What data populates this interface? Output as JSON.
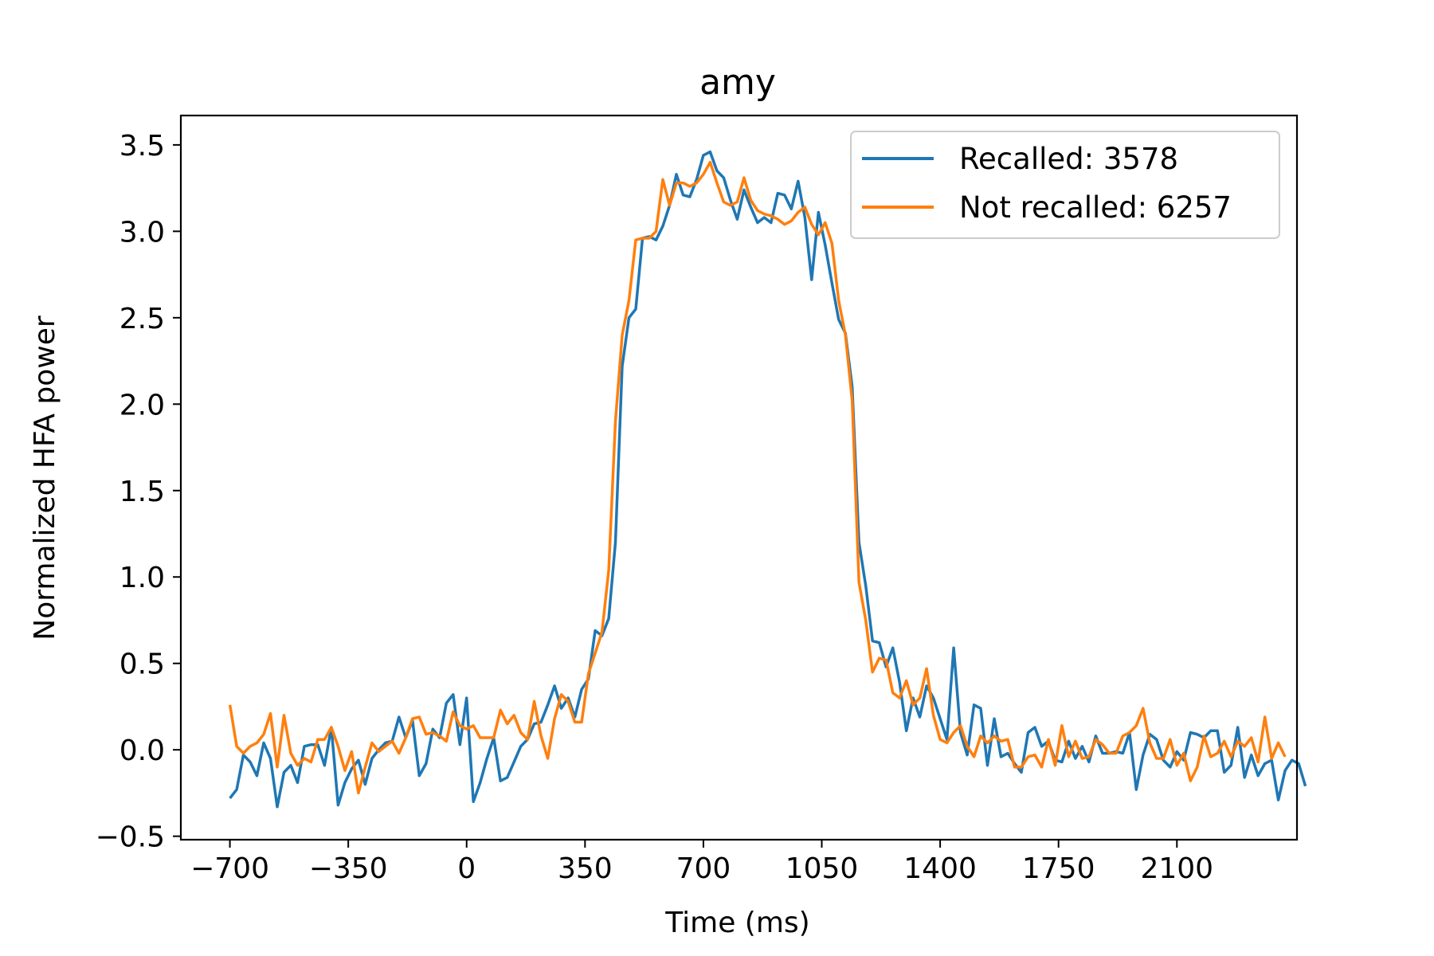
{
  "chart_data": {
    "type": "line",
    "title": "amy",
    "xlabel": "Time (ms)",
    "ylabel": "Normalized HFA power",
    "xlim": [
      -845,
      2455
    ],
    "ylim": [
      -0.52,
      3.67
    ],
    "xticks": [
      -700,
      -350,
      0,
      350,
      700,
      1050,
      1400,
      1750,
      2100
    ],
    "xtick_labels": [
      "−700",
      "−350",
      "0",
      "350",
      "700",
      "1050",
      "1400",
      "1750",
      "2100"
    ],
    "yticks": [
      -0.5,
      0.0,
      0.5,
      1.0,
      1.5,
      2.0,
      2.5,
      3.0,
      3.5
    ],
    "ytick_labels": [
      "−0.5",
      "0.0",
      "0.5",
      "1.0",
      "1.5",
      "2.0",
      "2.5",
      "3.0",
      "3.5"
    ],
    "grid": false,
    "legend_position": "top-right",
    "x_start": -700,
    "x_step": 20,
    "series": [
      {
        "name": "Recalled: 3578",
        "color": "#1f77b4",
        "values": [
          -0.28,
          -0.23,
          -0.03,
          -0.07,
          -0.15,
          0.04,
          -0.05,
          -0.33,
          -0.13,
          -0.09,
          -0.19,
          0.02,
          0.03,
          0.03,
          -0.09,
          0.13,
          -0.32,
          -0.19,
          -0.11,
          -0.06,
          -0.2,
          -0.05,
          0.0,
          0.04,
          0.05,
          0.19,
          0.07,
          0.17,
          -0.15,
          -0.08,
          0.12,
          0.07,
          0.27,
          0.32,
          0.03,
          0.3,
          -0.3,
          -0.19,
          -0.05,
          0.07,
          -0.18,
          -0.16,
          -0.07,
          0.02,
          0.06,
          0.15,
          0.16,
          0.26,
          0.37,
          0.24,
          0.3,
          0.19,
          0.35,
          0.41,
          0.69,
          0.66,
          0.76,
          1.2,
          2.22,
          2.5,
          2.55,
          2.96,
          2.97,
          2.95,
          3.03,
          3.15,
          3.33,
          3.21,
          3.2,
          3.3,
          3.44,
          3.46,
          3.35,
          3.31,
          3.18,
          3.07,
          3.24,
          3.14,
          3.05,
          3.08,
          3.05,
          3.22,
          3.21,
          3.13,
          3.29,
          3.08,
          2.72,
          3.11,
          2.92,
          2.7,
          2.49,
          2.41,
          2.1,
          1.2,
          0.95,
          0.63,
          0.62,
          0.48,
          0.59,
          0.39,
          0.11,
          0.3,
          0.19,
          0.37,
          0.3,
          0.18,
          0.06,
          0.59,
          0.1,
          -0.03,
          0.26,
          0.24,
          -0.09,
          0.18,
          -0.04,
          -0.02,
          -0.08,
          -0.13,
          0.1,
          0.13,
          0.02,
          0.05,
          -0.06,
          -0.07,
          0.05,
          -0.05,
          0.02,
          -0.07,
          0.08,
          -0.02,
          -0.02,
          -0.01,
          -0.02,
          0.1,
          -0.23,
          -0.03,
          0.09,
          0.06,
          -0.06,
          -0.1,
          -0.01,
          -0.06,
          0.1,
          0.09,
          0.07,
          0.11,
          0.11,
          -0.13,
          -0.09,
          0.13,
          -0.16,
          -0.03,
          -0.15,
          -0.08,
          -0.06,
          -0.29,
          -0.12,
          -0.06,
          -0.08,
          -0.21
        ]
      },
      {
        "name": "Not recalled: 6257",
        "color": "#ff7f0e",
        "values": [
          0.26,
          0.02,
          -0.02,
          0.02,
          0.04,
          0.09,
          0.21,
          -0.1,
          0.2,
          -0.02,
          -0.09,
          -0.05,
          -0.07,
          0.06,
          0.06,
          0.13,
          0.02,
          -0.12,
          -0.01,
          -0.25,
          -0.1,
          0.04,
          -0.01,
          0.02,
          0.05,
          -0.02,
          0.07,
          0.18,
          0.19,
          0.09,
          0.1,
          0.08,
          0.05,
          0.22,
          0.14,
          0.12,
          0.14,
          0.07,
          0.07,
          0.07,
          0.23,
          0.15,
          0.2,
          0.1,
          0.06,
          0.28,
          0.08,
          -0.05,
          0.18,
          0.32,
          0.28,
          0.16,
          0.16,
          0.44,
          0.56,
          0.68,
          1.04,
          1.9,
          2.4,
          2.6,
          2.95,
          2.96,
          2.96,
          3.0,
          3.3,
          3.15,
          3.28,
          3.28,
          3.26,
          3.28,
          3.33,
          3.4,
          3.28,
          3.17,
          3.15,
          3.17,
          3.31,
          3.18,
          3.12,
          3.1,
          3.09,
          3.07,
          3.04,
          3.06,
          3.11,
          3.14,
          3.04,
          2.98,
          3.05,
          2.93,
          2.6,
          2.4,
          2.02,
          0.97,
          0.75,
          0.45,
          0.53,
          0.52,
          0.33,
          0.3,
          0.4,
          0.26,
          0.3,
          0.47,
          0.2,
          0.06,
          0.04,
          0.1,
          0.14,
          0.02,
          -0.04,
          0.08,
          0.04,
          0.08,
          0.05,
          0.06,
          -0.1,
          -0.1,
          -0.04,
          -0.03,
          -0.1,
          0.06,
          -0.09,
          0.14,
          -0.04,
          0.05,
          -0.05,
          -0.04,
          0.06,
          0.03,
          -0.02,
          -0.02,
          0.08,
          0.1,
          0.14,
          0.24,
          0.04,
          -0.05,
          -0.05,
          0.06,
          -0.09,
          -0.02,
          -0.18,
          -0.1,
          0.08,
          -0.04,
          -0.02,
          0.05,
          -0.04,
          0.05,
          0.02,
          0.07,
          -0.07,
          0.19,
          -0.05,
          0.04,
          -0.04
        ]
      }
    ]
  }
}
